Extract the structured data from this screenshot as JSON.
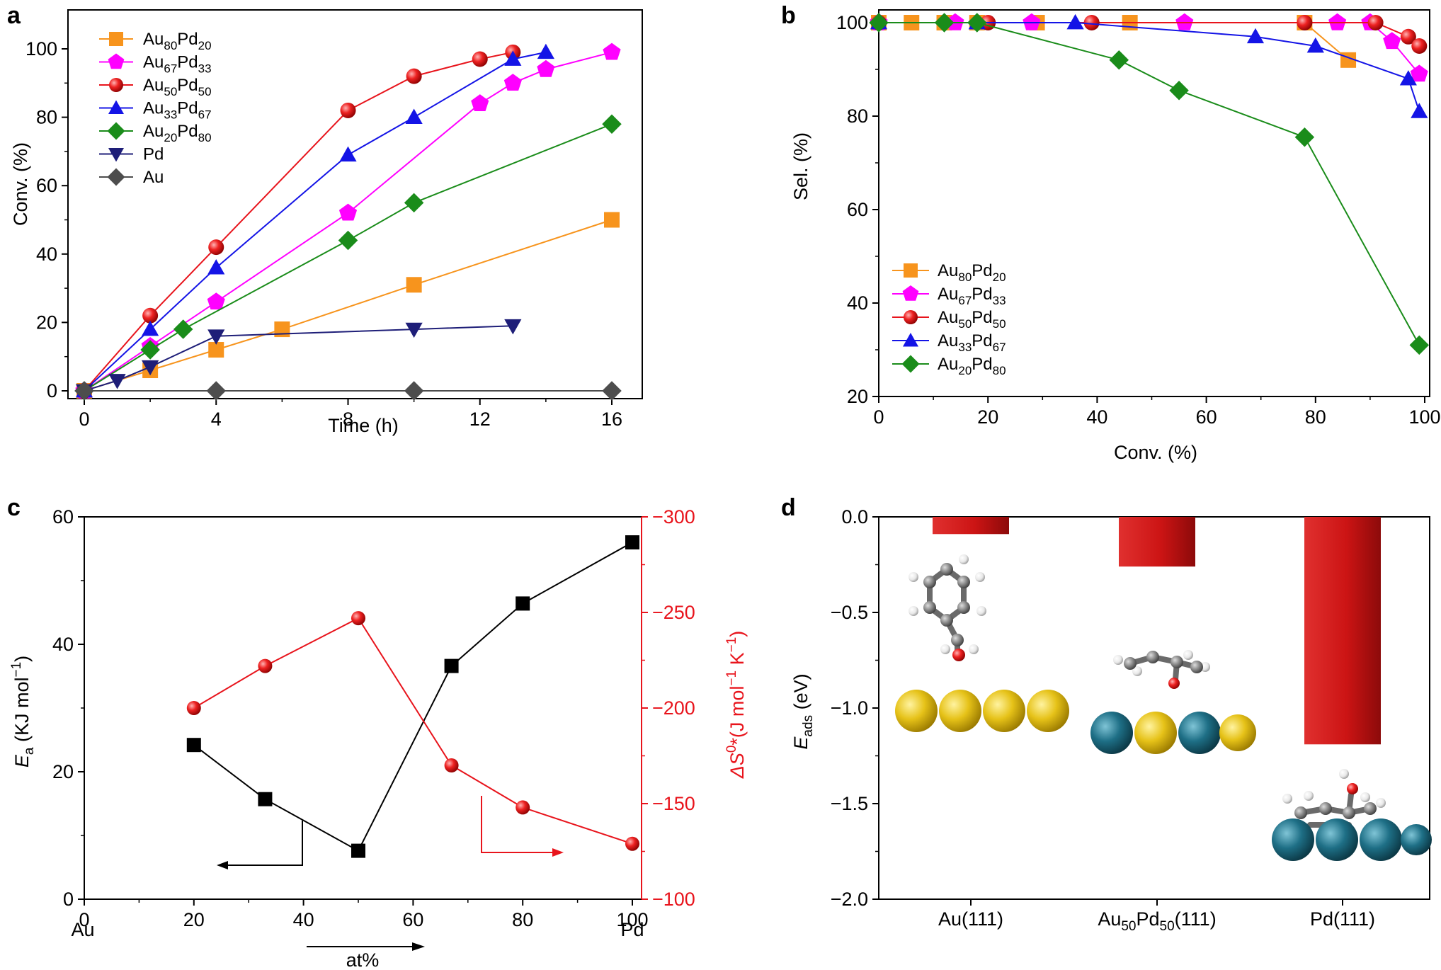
{
  "colors": {
    "Au80Pd20": "#f7941d",
    "Au67Pd33": "#ff00ff",
    "Au50Pd50": "#e8141c",
    "Au33Pd67": "#1414e6",
    "Au20Pd80": "#1a8c1a",
    "Pd": "#1e1e78",
    "Au": "#4d4d4d",
    "Ea": "#000000",
    "dS": "#e8141c",
    "bar": "#c4161c"
  },
  "legend_labels": {
    "Au80Pd20": {
      "a": "Au",
      "s1": "80",
      "b": "Pd",
      "s2": "20"
    },
    "Au67Pd33": {
      "a": "Au",
      "s1": "67",
      "b": "Pd",
      "s2": "33"
    },
    "Au50Pd50": {
      "a": "Au",
      "s1": "50",
      "b": "Pd",
      "s2": "50"
    },
    "Au33Pd67": {
      "a": "Au",
      "s1": "33",
      "b": "Pd",
      "s2": "67"
    },
    "Au20Pd80": {
      "a": "Au",
      "s1": "20",
      "b": "Pd",
      "s2": "80"
    },
    "Pd": "Pd",
    "Au": "Au"
  },
  "chart_data": [
    {
      "panel": "a",
      "type": "line",
      "xlabel": "Time (h)",
      "ylabel": "Conv. (%)",
      "xlim": [
        0,
        16
      ],
      "ylim": [
        -3,
        110
      ],
      "xticks": [
        0,
        4,
        8,
        12,
        16
      ],
      "yticks": [
        0,
        20,
        40,
        60,
        80,
        100
      ],
      "legend": "top-left",
      "series": [
        {
          "key": "Au80Pd20",
          "marker": "square",
          "x": [
            0,
            2,
            4,
            6,
            10,
            16
          ],
          "y": [
            0,
            6,
            12,
            18,
            31,
            50
          ]
        },
        {
          "key": "Au67Pd33",
          "marker": "pentagon",
          "x": [
            0,
            2,
            4,
            8,
            12,
            13,
            14,
            16
          ],
          "y": [
            0,
            13,
            26,
            52,
            84,
            90,
            94,
            99
          ]
        },
        {
          "key": "Au50Pd50",
          "marker": "circle",
          "x": [
            0,
            2,
            4,
            8,
            10,
            12,
            13
          ],
          "y": [
            0,
            22,
            42,
            82,
            92,
            97,
            99
          ]
        },
        {
          "key": "Au33Pd67",
          "marker": "triangle-up",
          "x": [
            0,
            2,
            4,
            8,
            10,
            13,
            14
          ],
          "y": [
            0,
            18,
            36,
            69,
            80,
            97,
            99
          ]
        },
        {
          "key": "Au20Pd80",
          "marker": "diamond",
          "x": [
            0,
            2,
            3,
            8,
            10,
            16
          ],
          "y": [
            0,
            12,
            18,
            44,
            55,
            78
          ]
        },
        {
          "key": "Pd",
          "marker": "triangle-down",
          "x": [
            0,
            1,
            2,
            4,
            10,
            13
          ],
          "y": [
            0,
            3,
            7,
            16,
            18,
            19
          ]
        },
        {
          "key": "Au",
          "marker": "diamond",
          "x": [
            0,
            4,
            10,
            16
          ],
          "y": [
            0,
            0,
            0,
            0
          ]
        }
      ]
    },
    {
      "panel": "b",
      "type": "line",
      "xlabel": "Conv. (%)",
      "ylabel": "Sel. (%)",
      "xlim": [
        0,
        100
      ],
      "ylim": [
        20,
        102
      ],
      "xticks": [
        0,
        20,
        40,
        60,
        80,
        100
      ],
      "yticks": [
        20,
        40,
        60,
        80,
        100
      ],
      "legend": "bottom-left",
      "series": [
        {
          "key": "Au80Pd20",
          "marker": "square",
          "x": [
            0,
            6,
            12,
            18,
            29,
            46,
            78,
            86
          ],
          "y": [
            100,
            100,
            100,
            100,
            100,
            100,
            100,
            92
          ]
        },
        {
          "key": "Au67Pd33",
          "marker": "pentagon",
          "x": [
            0,
            14,
            28,
            56,
            84,
            90,
            94,
            99
          ],
          "y": [
            100,
            100,
            100,
            100,
            100,
            100,
            96,
            89
          ]
        },
        {
          "key": "Au50Pd50",
          "marker": "circle",
          "x": [
            0,
            20,
            39,
            78,
            91,
            97,
            99
          ],
          "y": [
            100,
            100,
            100,
            100,
            100,
            97,
            95
          ]
        },
        {
          "key": "Au33Pd67",
          "marker": "triangle-up",
          "x": [
            0,
            18,
            36,
            69,
            80,
            97,
            99
          ],
          "y": [
            100,
            100,
            100,
            97,
            95,
            88,
            81
          ]
        },
        {
          "key": "Au20Pd80",
          "marker": "diamond",
          "x": [
            0,
            12,
            18,
            44,
            55,
            78,
            99
          ],
          "y": [
            100,
            100,
            100,
            92,
            85.5,
            75.5,
            31
          ]
        }
      ]
    },
    {
      "panel": "c",
      "type": "line",
      "xlabel": "at%",
      "ylabel": "Ea (KJ mol-1)",
      "y2label": "ΔS0*(J mol-1 K-1)",
      "xlim": [
        0,
        103
      ],
      "ylim": [
        0,
        60
      ],
      "y2lim": [
        -100,
        -300
      ],
      "xticks": [
        0,
        20,
        40,
        60,
        80,
        100
      ],
      "yticks": [
        0,
        20,
        40,
        60
      ],
      "y2ticks": [
        -100,
        -150,
        -200,
        -250,
        -300
      ],
      "x_end_labels": [
        "Au",
        "Pd"
      ],
      "series": [
        {
          "key": "Ea",
          "axis": "left",
          "marker": "square",
          "x": [
            20,
            33,
            50,
            67,
            80,
            100
          ],
          "y": [
            24.2,
            15.7,
            7.6,
            36.6,
            46.4,
            56
          ]
        },
        {
          "key": "dS",
          "axis": "right",
          "marker": "circle",
          "x": [
            20,
            33,
            50,
            67,
            80,
            100
          ],
          "y": [
            -200,
            -222,
            -247,
            -170,
            -148,
            -129
          ]
        }
      ]
    },
    {
      "panel": "d",
      "type": "bar",
      "ylabel": "Eads (eV)",
      "ylim": [
        -2.0,
        0.0
      ],
      "yticks": [
        0.0,
        -0.5,
        -1.0,
        -1.5,
        -2.0
      ],
      "categories": [
        "Au(111)",
        "Au50Pd50(111)",
        "Pd(111)"
      ],
      "category_parts": [
        {
          "a": "Au(111)"
        },
        {
          "a": "Au",
          "s": "50",
          "b": "Pd",
          "s2": "50",
          "c": "(111)"
        },
        {
          "a": "Pd(111)"
        }
      ],
      "values": [
        -0.09,
        -0.26,
        -1.19
      ]
    }
  ],
  "panel_letters": [
    "a",
    "b",
    "c",
    "d"
  ],
  "axis_texts": {
    "a_x": "Time (h)",
    "a_y": "Conv. (%)",
    "b_x": "Conv. (%)",
    "b_y": "Sel. (%)",
    "c_x": "at%",
    "c_y_main": "E",
    "c_y_sub": "a",
    "c_y_rest": " (KJ mol",
    "c_y_sup": "−1",
    "c_y_end": ")",
    "c_y2_a": "ΔS",
    "c_y2_sup1": "0",
    "c_y2_b": "*(J mol",
    "c_y2_sup2": "−1",
    "c_y2_c": " K",
    "c_y2_sup3": "−1",
    "c_y2_d": ")",
    "d_y_main": "E",
    "d_y_sub": "ads",
    "d_y_rest": " (eV)"
  }
}
